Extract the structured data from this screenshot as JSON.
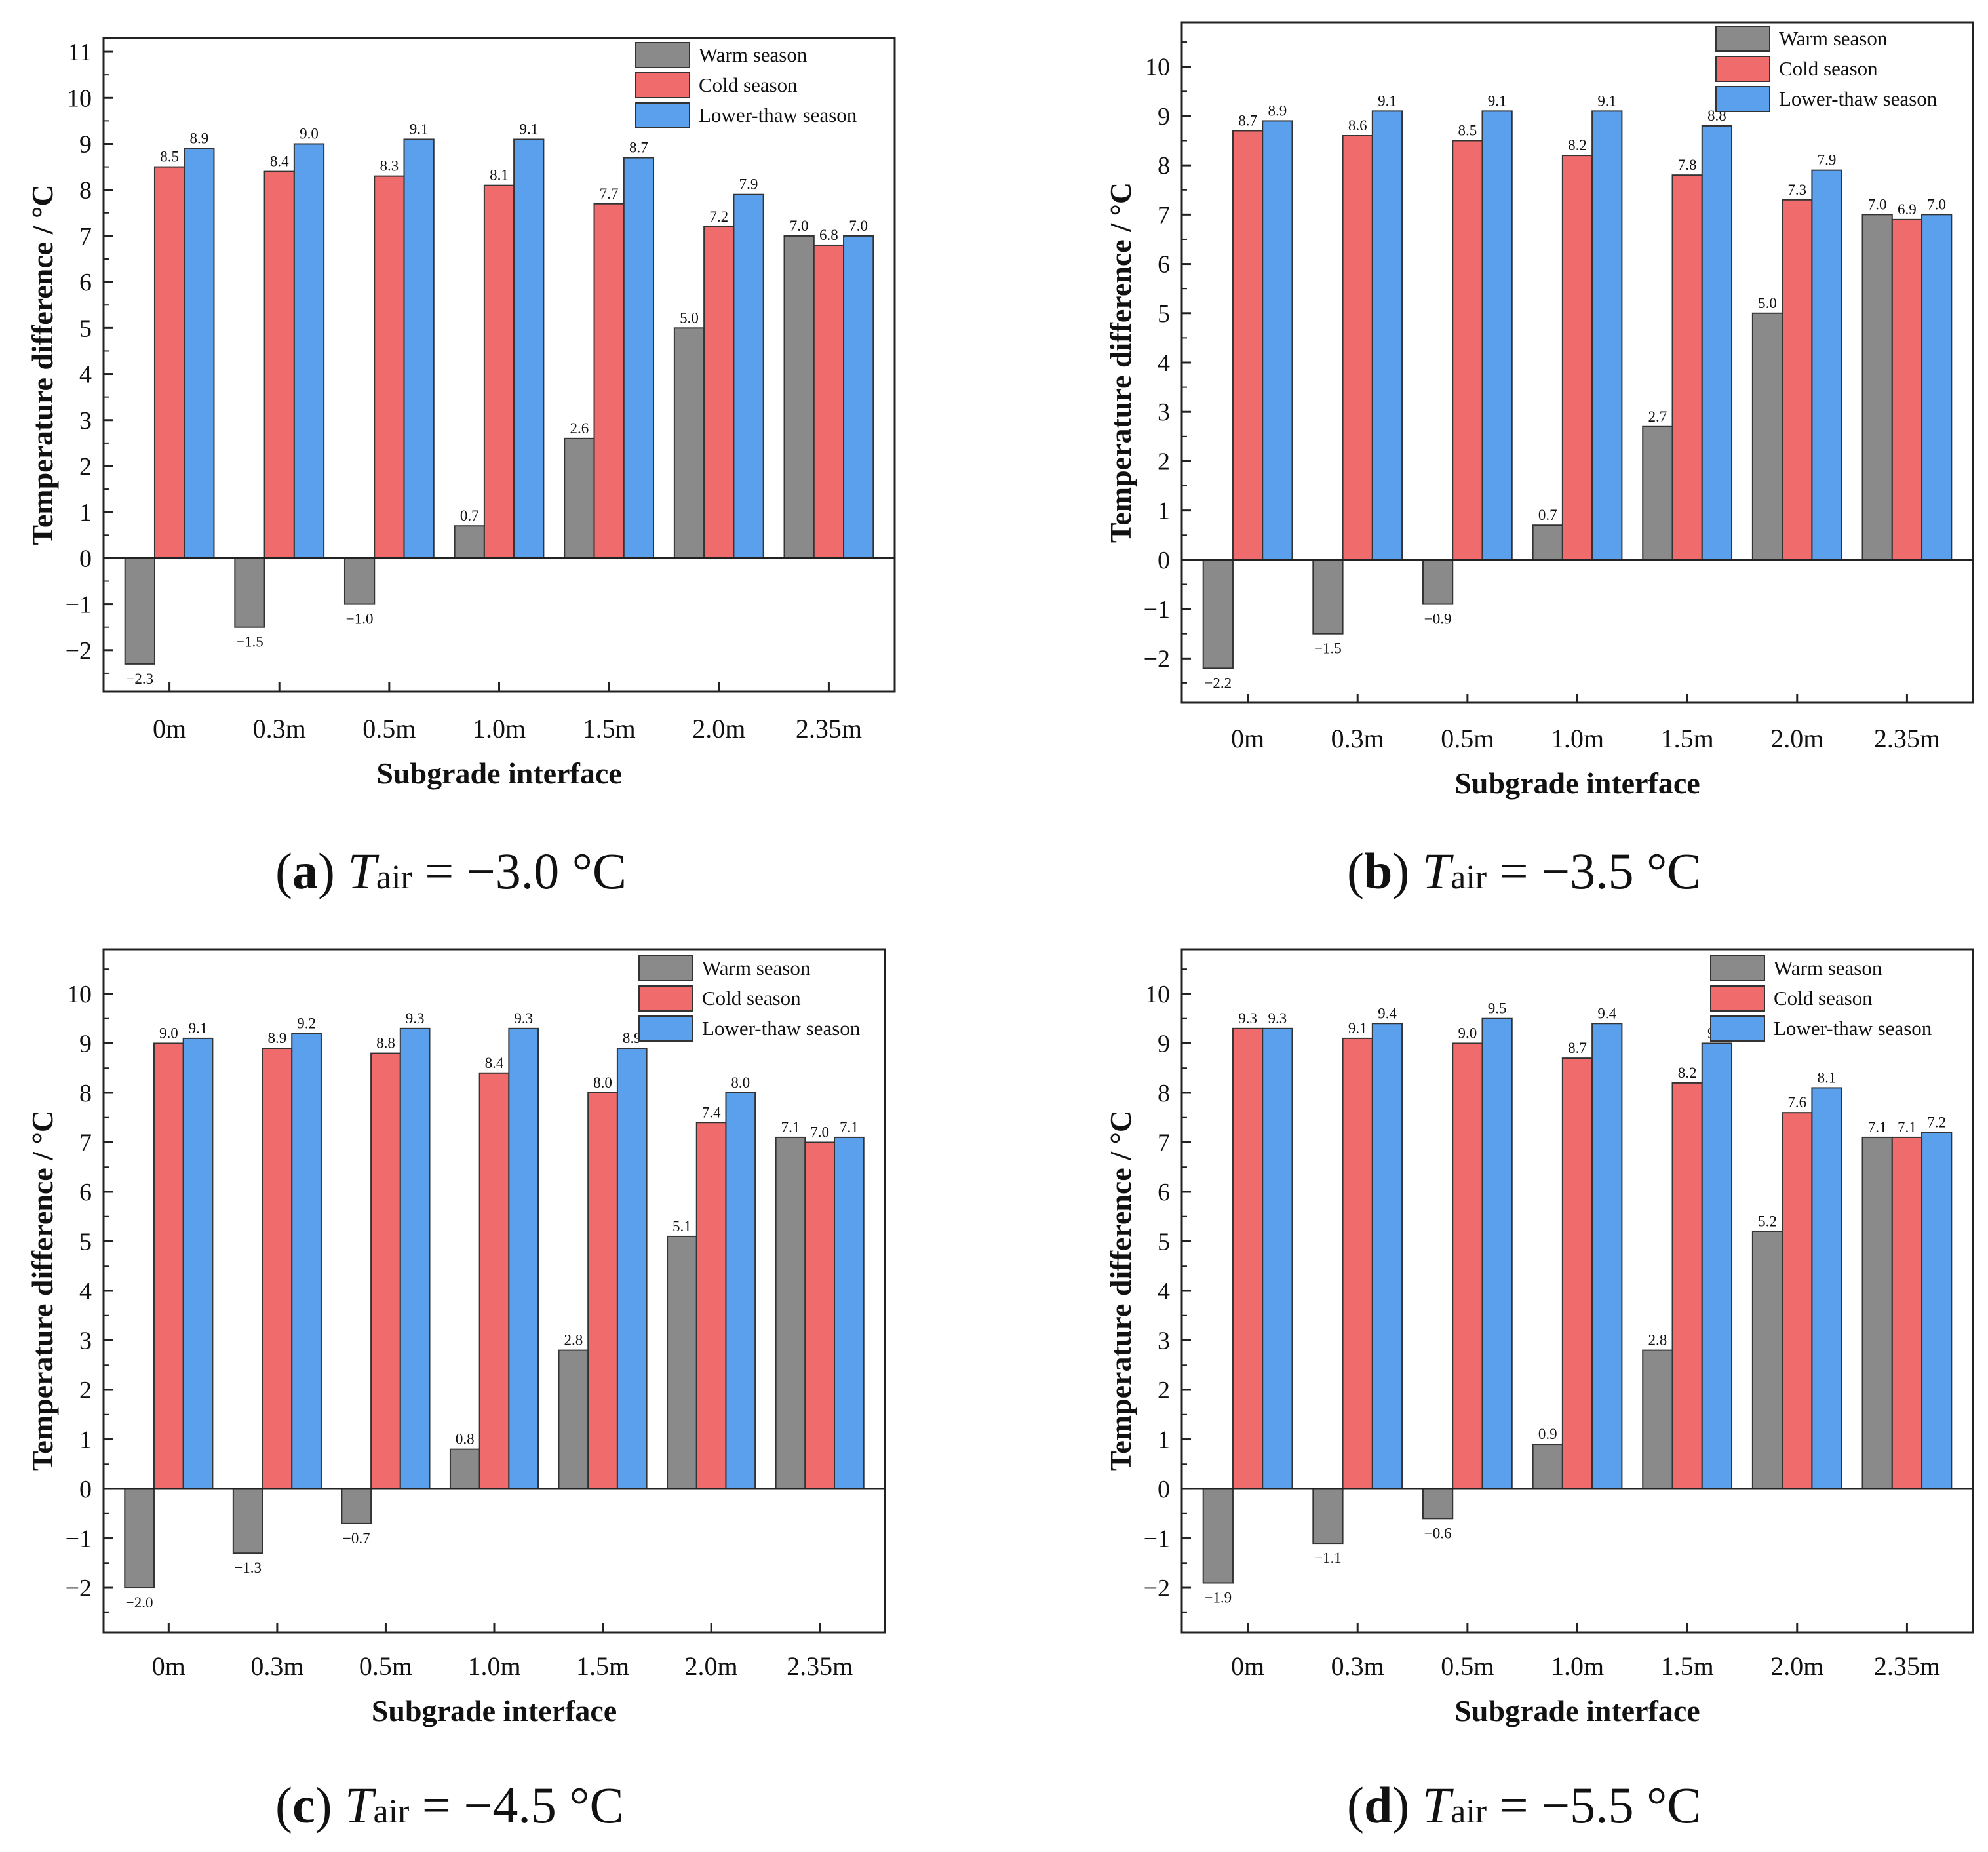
{
  "figure": {
    "panels": [
      {
        "caption": {
          "letter": "a",
          "var": "T",
          "sub": "air",
          "eq": " = ",
          "value": "−3.0 °C"
        }
      },
      {
        "caption": {
          "letter": "b",
          "var": "T",
          "sub": "air",
          "eq": " = ",
          "value": "−3.5 °C"
        }
      },
      {
        "caption": {
          "letter": "c",
          "var": "T",
          "sub": "air",
          "eq": " = ",
          "value": "−4.5 °C"
        }
      },
      {
        "caption": {
          "letter": "d",
          "var": "T",
          "sub": "air",
          "eq": " = ",
          "value": "−5.5 °C"
        }
      }
    ]
  },
  "chart_data": [
    {
      "type": "bar",
      "title": "",
      "xlabel": "Subgrade interface",
      "ylabel": "Temperature difference / °C",
      "ylim": [
        -2.9,
        11.3
      ],
      "yticks": [
        -2,
        -1,
        0,
        1,
        2,
        3,
        4,
        5,
        6,
        7,
        8,
        9,
        10,
        11
      ],
      "grid": false,
      "legend": "top-right",
      "categories": [
        "0m",
        "0.3m",
        "0.5m",
        "1.0m",
        "1.5m",
        "2.0m",
        "2.35m"
      ],
      "series": [
        {
          "name": "Warm season",
          "color": "#8a8a8a",
          "values": [
            -2.3,
            -1.5,
            -1.0,
            0.7,
            2.6,
            5.0,
            7.0
          ]
        },
        {
          "name": "Cold season",
          "color": "#f06b6b",
          "values": [
            8.5,
            8.4,
            8.3,
            8.1,
            7.7,
            7.2,
            6.8
          ]
        },
        {
          "name": "Lower-thaw season",
          "color": "#5ba0ec",
          "values": [
            8.9,
            9.0,
            9.1,
            9.1,
            8.7,
            7.9,
            7.0
          ]
        }
      ]
    },
    {
      "type": "bar",
      "title": "",
      "xlabel": "Subgrade  interface",
      "ylabel": "Temperature difference / °C",
      "ylim": [
        -2.9,
        10.9
      ],
      "yticks": [
        -2,
        -1,
        0,
        1,
        2,
        3,
        4,
        5,
        6,
        7,
        8,
        9,
        10
      ],
      "grid": false,
      "legend": "top-right",
      "categories": [
        "0m",
        "0.3m",
        "0.5m",
        "1.0m",
        "1.5m",
        "2.0m",
        "2.35m"
      ],
      "series": [
        {
          "name": "Warm season",
          "color": "#8a8a8a",
          "values": [
            -2.2,
            -1.5,
            -0.9,
            0.7,
            2.7,
            5.0,
            7.0
          ]
        },
        {
          "name": "Cold season",
          "color": "#f06b6b",
          "values": [
            8.7,
            8.6,
            8.5,
            8.2,
            7.8,
            7.3,
            6.9
          ]
        },
        {
          "name": "Lower-thaw season",
          "color": "#5ba0ec",
          "values": [
            8.9,
            9.1,
            9.1,
            9.1,
            8.8,
            7.9,
            7.0
          ]
        }
      ]
    },
    {
      "type": "bar",
      "title": "",
      "xlabel": "Subgrade interface",
      "ylabel": "Temperature difference / °C",
      "ylim": [
        -2.9,
        10.9
      ],
      "yticks": [
        -2,
        -1,
        0,
        1,
        2,
        3,
        4,
        5,
        6,
        7,
        8,
        9,
        10
      ],
      "grid": false,
      "legend": "top-right",
      "categories": [
        "0m",
        "0.3m",
        "0.5m",
        "1.0m",
        "1.5m",
        "2.0m",
        "2.35m"
      ],
      "series": [
        {
          "name": "Warm season",
          "color": "#8a8a8a",
          "values": [
            -2.0,
            -1.3,
            -0.7,
            0.8,
            2.8,
            5.1,
            7.1
          ]
        },
        {
          "name": "Cold season",
          "color": "#f06b6b",
          "values": [
            9.0,
            8.9,
            8.8,
            8.4,
            8.0,
            7.4,
            7.0
          ]
        },
        {
          "name": "Lower-thaw season",
          "color": "#5ba0ec",
          "values": [
            9.1,
            9.2,
            9.3,
            9.3,
            8.9,
            8.0,
            7.1
          ]
        }
      ]
    },
    {
      "type": "bar",
      "title": "",
      "xlabel": "Subgrade  interface",
      "ylabel": "Temperature difference / °C",
      "ylim": [
        -2.9,
        10.9
      ],
      "yticks": [
        -2,
        -1,
        0,
        1,
        2,
        3,
        4,
        5,
        6,
        7,
        8,
        9,
        10
      ],
      "grid": false,
      "legend": "top-right",
      "categories": [
        "0m",
        "0.3m",
        "0.5m",
        "1.0m",
        "1.5m",
        "2.0m",
        "2.35m"
      ],
      "series": [
        {
          "name": "Warm season",
          "color": "#8a8a8a",
          "values": [
            -1.9,
            -1.1,
            -0.6,
            0.9,
            2.8,
            5.2,
            7.1
          ]
        },
        {
          "name": "Cold season",
          "color": "#f06b6b",
          "values": [
            9.3,
            9.1,
            9.0,
            8.7,
            8.2,
            7.6,
            7.1
          ]
        },
        {
          "name": "Lower-thaw season",
          "color": "#5ba0ec",
          "values": [
            9.3,
            9.4,
            9.5,
            9.4,
            9.0,
            8.1,
            7.2
          ]
        }
      ]
    }
  ]
}
